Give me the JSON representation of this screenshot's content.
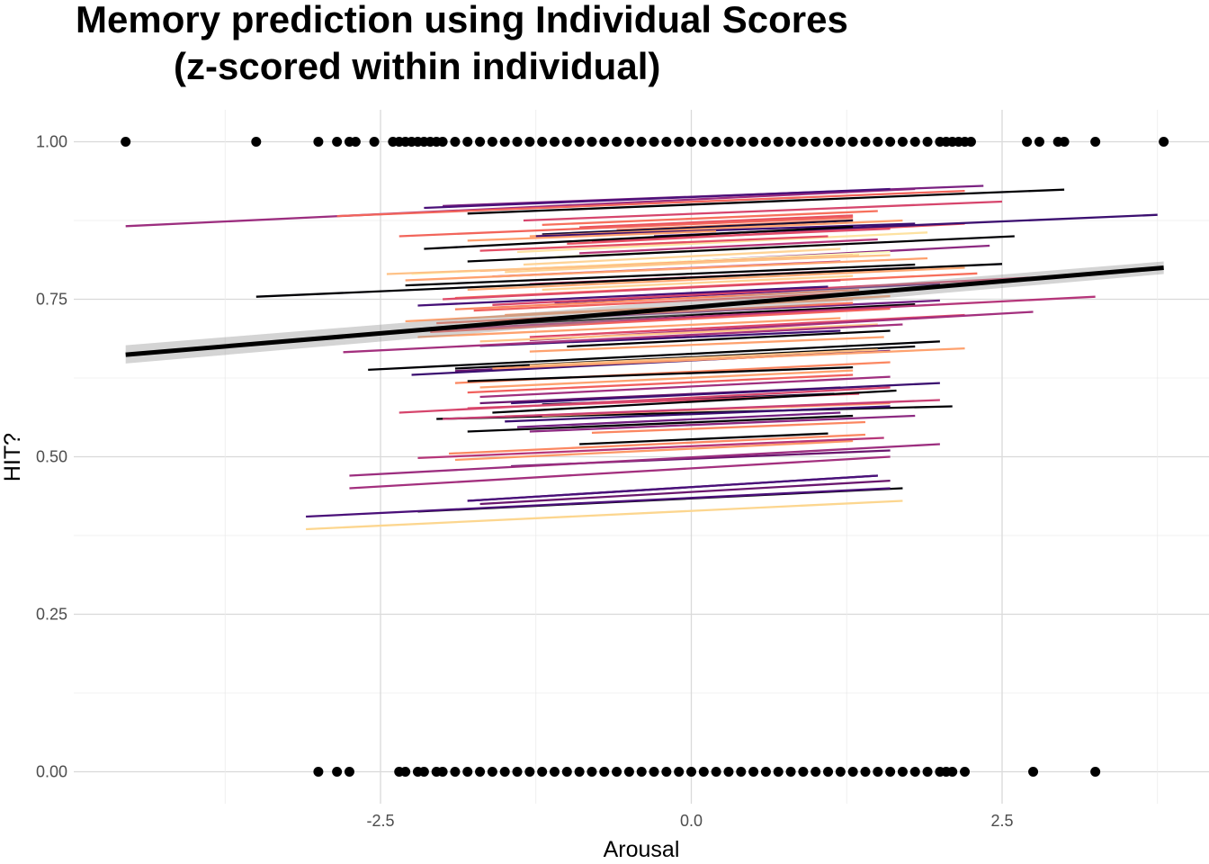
{
  "chart_data": {
    "type": "scatter",
    "title_line1": "Memory prediction using Individual Scores",
    "title_line2": "(z-scored within individual)",
    "xlabel": "Arousal",
    "ylabel": "HIT?",
    "xlim": [
      -4.7,
      4.0
    ],
    "ylim": [
      -0.05,
      1.05
    ],
    "x_ticks": [
      -2.5,
      0.0,
      2.5
    ],
    "x_tick_labels": [
      "-2.5",
      "0.0",
      "2.5"
    ],
    "y_ticks": [
      0.0,
      0.25,
      0.5,
      0.75,
      1.0
    ],
    "y_tick_labels": [
      "0.00",
      "0.25",
      "0.50",
      "0.75",
      "1.00"
    ],
    "grid": true,
    "legend": "none",
    "points_hit": [
      -4.55,
      -3.5,
      -3.0,
      -2.85,
      -2.75,
      -2.7,
      -2.55,
      -2.4,
      -2.35,
      -2.3,
      -2.25,
      -2.2,
      -2.15,
      -2.1,
      -2.05,
      -2.0,
      -1.9,
      -1.8,
      -1.7,
      -1.6,
      -1.5,
      -1.4,
      -1.3,
      -1.2,
      -1.1,
      -1.0,
      -0.9,
      -0.8,
      -0.7,
      -0.6,
      -0.5,
      -0.4,
      -0.3,
      -0.2,
      -0.1,
      0.0,
      0.1,
      0.2,
      0.3,
      0.4,
      0.5,
      0.6,
      0.7,
      0.8,
      0.9,
      1.0,
      1.1,
      1.2,
      1.3,
      1.4,
      1.5,
      1.6,
      1.7,
      1.8,
      1.9,
      2.0,
      2.05,
      2.1,
      2.15,
      2.2,
      2.25,
      2.7,
      2.8,
      2.95,
      3.0,
      3.25,
      3.8
    ],
    "points_miss": [
      -3.0,
      -2.85,
      -2.75,
      -2.35,
      -2.3,
      -2.2,
      -2.15,
      -2.05,
      -2.0,
      -1.9,
      -1.8,
      -1.7,
      -1.6,
      -1.5,
      -1.4,
      -1.3,
      -1.2,
      -1.1,
      -1.0,
      -0.9,
      -0.8,
      -0.7,
      -0.6,
      -0.5,
      -0.4,
      -0.3,
      -0.2,
      -0.1,
      0.0,
      0.1,
      0.2,
      0.3,
      0.4,
      0.5,
      0.6,
      0.7,
      0.8,
      0.9,
      1.0,
      1.1,
      1.2,
      1.3,
      1.4,
      1.5,
      1.6,
      1.7,
      1.8,
      1.9,
      2.0,
      2.05,
      2.1,
      2.2,
      2.75,
      3.25
    ],
    "overall_fit": {
      "x": [
        -4.55,
        3.8
      ],
      "y": [
        0.662,
        0.8
      ],
      "ci_lower": [
        0.648,
        0.79
      ],
      "ci_upper": [
        0.677,
        0.81
      ]
    },
    "individual_lines": [
      {
        "x": [
          -4.55,
          1.8
        ],
        "y": [
          0.866,
          0.925
        ],
        "color": "#9c2e7f"
      },
      {
        "x": [
          -2.85,
          2.2
        ],
        "y": [
          0.882,
          0.922
        ],
        "color": "#f2655b"
      },
      {
        "x": [
          -2.0,
          2.35
        ],
        "y": [
          0.898,
          0.93
        ],
        "color": "#7a2181"
      },
      {
        "x": [
          -2.15,
          1.6
        ],
        "y": [
          0.895,
          0.925
        ],
        "color": "#4a1079"
      },
      {
        "x": [
          -1.8,
          3.0
        ],
        "y": [
          0.886,
          0.924
        ],
        "color": "#000004"
      },
      {
        "x": [
          -1.35,
          2.5
        ],
        "y": [
          0.875,
          0.905
        ],
        "color": "#d6456c"
      },
      {
        "x": [
          -1.2,
          1.5
        ],
        "y": [
          0.868,
          0.89
        ],
        "color": "#f7705c"
      },
      {
        "x": [
          -0.9,
          1.3
        ],
        "y": [
          0.864,
          0.883
        ],
        "color": "#e8525f"
      },
      {
        "x": [
          -0.6,
          1.3
        ],
        "y": [
          0.86,
          0.876
        ],
        "color": "#fb8761"
      },
      {
        "x": [
          -1.2,
          1.3
        ],
        "y": [
          0.853,
          0.875
        ],
        "color": "#140e36"
      },
      {
        "x": [
          -1.3,
          1.7
        ],
        "y": [
          0.85,
          0.875
        ],
        "color": "#fea16e"
      },
      {
        "x": [
          -1.25,
          1.8
        ],
        "y": [
          0.85,
          0.87
        ],
        "color": "#3b0f70"
      },
      {
        "x": [
          -2.35,
          1.3
        ],
        "y": [
          0.85,
          0.88
        ],
        "color": "#f2655b"
      },
      {
        "x": [
          -1.0,
          2.2
        ],
        "y": [
          0.838,
          0.87
        ],
        "color": "#e95462"
      },
      {
        "x": [
          -1.8,
          0.2
        ],
        "y": [
          0.843,
          0.858
        ],
        "color": "#fe9f6d"
      },
      {
        "x": [
          -0.8,
          1.6
        ],
        "y": [
          0.842,
          0.862
        ],
        "color": "#de4968"
      },
      {
        "x": [
          -0.3,
          3.75
        ],
        "y": [
          0.85,
          0.884
        ],
        "color": "#3b0f70"
      },
      {
        "x": [
          -2.15,
          1.3
        ],
        "y": [
          0.83,
          0.865
        ],
        "color": "#000004"
      },
      {
        "x": [
          -1.4,
          1.9
        ],
        "y": [
          0.825,
          0.856
        ],
        "color": "#fde2a1"
      },
      {
        "x": [
          -1.7,
          1.1
        ],
        "y": [
          0.827,
          0.85
        ],
        "color": "#e34e65"
      },
      {
        "x": [
          -0.9,
          1.5
        ],
        "y": [
          0.823,
          0.845
        ],
        "color": "#b63679"
      },
      {
        "x": [
          -1.1,
          1.2
        ],
        "y": [
          0.817,
          0.837
        ],
        "color": "#fcfdbf"
      },
      {
        "x": [
          -1.8,
          2.6
        ],
        "y": [
          0.81,
          0.85
        ],
        "color": "#000004"
      },
      {
        "x": [
          -1.35,
          1.2
        ],
        "y": [
          0.805,
          0.83
        ],
        "color": "#fed395"
      },
      {
        "x": [
          -1.0,
          2.4
        ],
        "y": [
          0.8,
          0.835
        ],
        "color": "#8c2981"
      },
      {
        "x": [
          -2.25,
          1.6
        ],
        "y": [
          0.79,
          0.825
        ],
        "color": "#fcfdbf"
      },
      {
        "x": [
          -1.7,
          1.3
        ],
        "y": [
          0.795,
          0.82
        ],
        "color": "#fea16e"
      },
      {
        "x": [
          -1.5,
          1.35
        ],
        "y": [
          0.793,
          0.82
        ],
        "color": "#fed395"
      },
      {
        "x": [
          -1.6,
          1.2
        ],
        "y": [
          0.786,
          0.81
        ],
        "color": "#b63679"
      },
      {
        "x": [
          -2.45,
          1.6
        ],
        "y": [
          0.79,
          0.82
        ],
        "color": "#fec287"
      },
      {
        "x": [
          -2.3,
          1.9
        ],
        "y": [
          0.78,
          0.815
        ],
        "color": "#fea16e"
      },
      {
        "x": [
          -1.3,
          1.8
        ],
        "y": [
          0.774,
          0.8
        ],
        "color": "#cd4071"
      },
      {
        "x": [
          -1.8,
          2.2
        ],
        "y": [
          0.765,
          0.8
        ],
        "color": "#fea973"
      },
      {
        "x": [
          -2.3,
          1.8
        ],
        "y": [
          0.772,
          0.805
        ],
        "color": "#000004"
      },
      {
        "x": [
          -3.5,
          2.5
        ],
        "y": [
          0.754,
          0.806
        ],
        "color": "#000004"
      },
      {
        "x": [
          -1.2,
          1.3
        ],
        "y": [
          0.765,
          0.787
        ],
        "color": "#fed395"
      },
      {
        "x": [
          -1.9,
          2.3
        ],
        "y": [
          0.752,
          0.791
        ],
        "color": "#f7705c"
      },
      {
        "x": [
          -2.0,
          1.2
        ],
        "y": [
          0.75,
          0.78
        ],
        "color": "#de4968"
      },
      {
        "x": [
          -1.1,
          2.0
        ],
        "y": [
          0.745,
          0.775
        ],
        "color": "#4a1079"
      },
      {
        "x": [
          -1.6,
          2.8
        ],
        "y": [
          0.741,
          0.785
        ],
        "color": "#d6456c"
      },
      {
        "x": [
          -1.9,
          1.35
        ],
        "y": [
          0.734,
          0.765
        ],
        "color": "#fb8761"
      },
      {
        "x": [
          -1.75,
          1.3
        ],
        "y": [
          0.732,
          0.76
        ],
        "color": "#f1605d"
      },
      {
        "x": [
          -2.2,
          1.1
        ],
        "y": [
          0.74,
          0.77
        ],
        "color": "#451077"
      },
      {
        "x": [
          -1.5,
          1.3
        ],
        "y": [
          0.725,
          0.75
        ],
        "color": "#fe9f6d"
      },
      {
        "x": [
          -2.3,
          1.6
        ],
        "y": [
          0.715,
          0.755
        ],
        "color": "#fea16e"
      },
      {
        "x": [
          -1.3,
          2.0
        ],
        "y": [
          0.718,
          0.748
        ],
        "color": "#721f81"
      },
      {
        "x": [
          -2.05,
          1.3
        ],
        "y": [
          0.712,
          0.744
        ],
        "color": "#f7705c"
      },
      {
        "x": [
          -1.6,
          1.8
        ],
        "y": [
          0.71,
          0.742
        ],
        "color": "#000004"
      },
      {
        "x": [
          -2.6,
          3.25
        ],
        "y": [
          0.696,
          0.754
        ],
        "color": "#b5367a"
      },
      {
        "x": [
          -2.1,
          1.6
        ],
        "y": [
          0.698,
          0.735
        ],
        "color": "#f1605d"
      },
      {
        "x": [
          -1.3,
          2.2
        ],
        "y": [
          0.69,
          0.725
        ],
        "color": "#de4968"
      },
      {
        "x": [
          -2.2,
          1.2
        ],
        "y": [
          0.69,
          0.72
        ],
        "color": "#fea16e"
      },
      {
        "x": [
          -1.3,
          2.75
        ],
        "y": [
          0.685,
          0.73
        ],
        "color": "#a3307e"
      },
      {
        "x": [
          -1.7,
          1.5
        ],
        "y": [
          0.683,
          0.71
        ],
        "color": "#fec287"
      },
      {
        "x": [
          -1.0,
          1.6
        ],
        "y": [
          0.675,
          0.7
        ],
        "color": "#000004"
      },
      {
        "x": [
          -1.7,
          1.2
        ],
        "y": [
          0.676,
          0.7
        ],
        "color": "#3b0f70"
      },
      {
        "x": [
          -2.8,
          1.7
        ],
        "y": [
          0.666,
          0.71
        ],
        "color": "#a3307e"
      },
      {
        "x": [
          -1.3,
          1.55
        ],
        "y": [
          0.667,
          0.69
        ],
        "color": "#fea16e"
      },
      {
        "x": [
          -2.6,
          2.0
        ],
        "y": [
          0.638,
          0.683
        ],
        "color": "#000004"
      },
      {
        "x": [
          -1.9,
          1.8
        ],
        "y": [
          0.64,
          0.675
        ],
        "color": "#000004"
      },
      {
        "x": [
          -1.9,
          1.6
        ],
        "y": [
          0.636,
          0.668
        ],
        "color": "#6a176e"
      },
      {
        "x": [
          -2.25,
          1.3
        ],
        "y": [
          0.63,
          0.666
        ],
        "color": "#3b0f70"
      },
      {
        "x": [
          -1.3,
          1.5
        ],
        "y": [
          0.645,
          0.67
        ],
        "color": "#fec287"
      },
      {
        "x": [
          -1.6,
          2.2
        ],
        "y": [
          0.64,
          0.672
        ],
        "color": "#fea16e"
      },
      {
        "x": [
          -1.9,
          1.6
        ],
        "y": [
          0.617,
          0.65
        ],
        "color": "#fb8761"
      },
      {
        "x": [
          -1.8,
          1.3
        ],
        "y": [
          0.62,
          0.642
        ],
        "color": "#000004"
      },
      {
        "x": [
          -1.7,
          1.3
        ],
        "y": [
          0.61,
          0.637
        ],
        "color": "#fea16e"
      },
      {
        "x": [
          -1.8,
          1.3
        ],
        "y": [
          0.602,
          0.63
        ],
        "color": "#f1605d"
      },
      {
        "x": [
          -1.7,
          1.6
        ],
        "y": [
          0.595,
          0.627
        ],
        "color": "#9f2f7f"
      },
      {
        "x": [
          -1.7,
          1.2
        ],
        "y": [
          0.585,
          0.61
        ],
        "color": "#6a176e"
      },
      {
        "x": [
          -1.45,
          2.0
        ],
        "y": [
          0.585,
          0.617
        ],
        "color": "#3b0f70"
      },
      {
        "x": [
          -1.2,
          1.15
        ],
        "y": [
          0.583,
          0.6
        ],
        "color": "#140e36"
      },
      {
        "x": [
          -1.8,
          1.35
        ],
        "y": [
          0.577,
          0.6
        ],
        "color": "#de4968"
      },
      {
        "x": [
          -1.6,
          1.65
        ],
        "y": [
          0.57,
          0.605
        ],
        "color": "#000004"
      },
      {
        "x": [
          -2.35,
          1.6
        ],
        "y": [
          0.57,
          0.61
        ],
        "color": "#d6456c"
      },
      {
        "x": [
          -2.05,
          2.1
        ],
        "y": [
          0.56,
          0.58
        ],
        "color": "#000004"
      },
      {
        "x": [
          -1.5,
          1.6
        ],
        "y": [
          0.564,
          0.585
        ],
        "color": "#fb8761"
      },
      {
        "x": [
          -1.2,
          0.8
        ],
        "y": [
          0.565,
          0.58
        ],
        "color": "#ff9f6d"
      },
      {
        "x": [
          -2.0,
          2.0
        ],
        "y": [
          0.56,
          0.59
        ],
        "color": "#c83e73"
      },
      {
        "x": [
          -1.5,
          1.6
        ],
        "y": [
          0.556,
          0.58
        ],
        "color": "#3b0f70"
      },
      {
        "x": [
          -1.4,
          1.2
        ],
        "y": [
          0.547,
          0.57
        ],
        "color": "#721f81"
      },
      {
        "x": [
          -1.3,
          1.8
        ],
        "y": [
          0.54,
          0.565
        ],
        "color": "#8c2981"
      },
      {
        "x": [
          -1.8,
          1.3
        ],
        "y": [
          0.54,
          0.565
        ],
        "color": "#000004"
      },
      {
        "x": [
          -0.8,
          1.4
        ],
        "y": [
          0.538,
          0.555
        ],
        "color": "#fb8761"
      },
      {
        "x": [
          -0.9,
          1.1
        ],
        "y": [
          0.52,
          0.537
        ],
        "color": "#000004"
      },
      {
        "x": [
          -1.95,
          1.4
        ],
        "y": [
          0.505,
          0.535
        ],
        "color": "#fb8761"
      },
      {
        "x": [
          -1.9,
          1.3
        ],
        "y": [
          0.495,
          0.525
        ],
        "color": "#fd9967"
      },
      {
        "x": [
          -2.2,
          1.55
        ],
        "y": [
          0.498,
          0.53
        ],
        "color": "#b63679"
      },
      {
        "x": [
          -1.45,
          1.6
        ],
        "y": [
          0.485,
          0.51
        ],
        "color": "#6a176e"
      },
      {
        "x": [
          -2.75,
          2.0
        ],
        "y": [
          0.47,
          0.52
        ],
        "color": "#9c2e7f"
      },
      {
        "x": [
          -2.75,
          1.6
        ],
        "y": [
          0.45,
          0.5
        ],
        "color": "#a3307e"
      },
      {
        "x": [
          -1.8,
          1.5
        ],
        "y": [
          0.43,
          0.47
        ],
        "color": "#3b0f70"
      },
      {
        "x": [
          -1.7,
          1.6
        ],
        "y": [
          0.425,
          0.462
        ],
        "color": "#6a176e"
      },
      {
        "x": [
          -1.8,
          1.5
        ],
        "y": [
          0.43,
          0.47
        ],
        "color": "#4a1079"
      },
      {
        "x": [
          -2.2,
          1.7
        ],
        "y": [
          0.413,
          0.45
        ],
        "color": "#000004"
      },
      {
        "x": [
          -3.1,
          1.6
        ],
        "y": [
          0.405,
          0.45
        ],
        "color": "#4a1079"
      },
      {
        "x": [
          -3.1,
          1.7
        ],
        "y": [
          0.385,
          0.43
        ],
        "color": "#fcd68f"
      }
    ]
  }
}
